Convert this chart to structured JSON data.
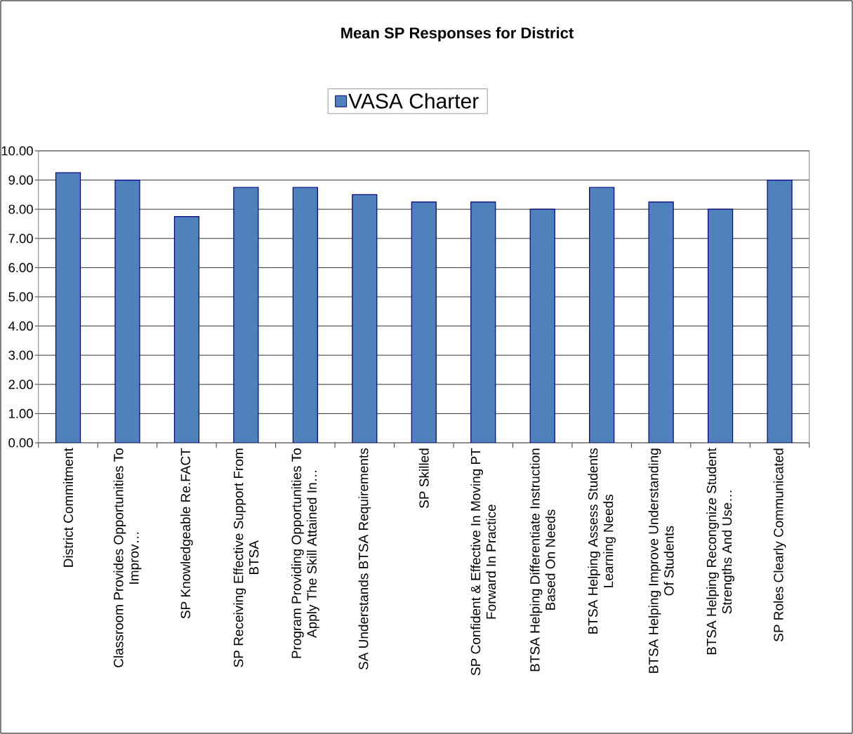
{
  "chart_data": {
    "type": "bar",
    "title": "Mean SP Responses for District",
    "categories": [
      "District Commitment",
      "Classroom Provides Opportunities To Improv…",
      "SP Knowledgeable Re.FACT",
      "SP Receiving Effective Support From BTSA",
      "Program Providing Opportunities To Apply The Skill Attained In…",
      "SA Understands BTSA Requirements",
      "SP Skilled",
      "SP Confident & Effective In Moving PT Forward In Practice",
      "BTSA Helping Differentiate Instruction Based On Needs",
      "BTSA Helping Assess Students Learning Needs",
      "BTSA Helping Improve Understanding Of Students",
      "BTSA Helping Recongnize Student Strengths And Use…",
      "SP Roles Clearly Communicated"
    ],
    "series": [
      {
        "name": "VASA Charter",
        "color": "#4f81bd",
        "values": [
          9.25,
          9.0,
          7.75,
          8.75,
          8.75,
          8.5,
          8.25,
          8.25,
          8.0,
          8.75,
          8.25,
          8.0,
          9.0
        ]
      }
    ],
    "ylim": [
      0,
      10
    ],
    "yticks": [
      {
        "value": 0,
        "label": "0.00"
      },
      {
        "value": 1,
        "label": "1.00"
      },
      {
        "value": 2,
        "label": "2.00"
      },
      {
        "value": 3,
        "label": "3.00"
      },
      {
        "value": 4,
        "label": "4.00"
      },
      {
        "value": 5,
        "label": "5.00"
      },
      {
        "value": 6,
        "label": "6.00"
      },
      {
        "value": 7,
        "label": "7.00"
      },
      {
        "value": 8,
        "label": "8.00"
      },
      {
        "value": 9,
        "label": "9.00"
      },
      {
        "value": 10,
        "label": "10.00"
      }
    ],
    "grid": "y",
    "legend": "top"
  }
}
